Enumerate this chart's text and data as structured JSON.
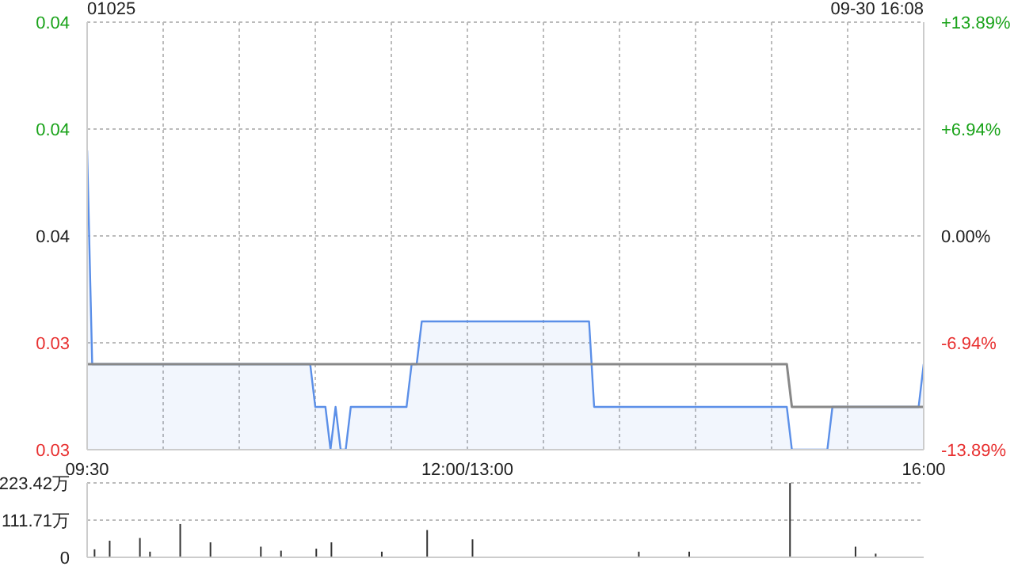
{
  "chart_data": [
    {
      "type": "area",
      "title": "01025",
      "annotations": [
        "09-30 16:08"
      ],
      "categories": [
        "09:30",
        null,
        null,
        null,
        null,
        null,
        null,
        null,
        null,
        null,
        null,
        null,
        null,
        null,
        null,
        null,
        null,
        null,
        null,
        null,
        null,
        null,
        null,
        null,
        null,
        null,
        null,
        null,
        null,
        null,
        null,
        null,
        null,
        null,
        null,
        null,
        null,
        null,
        null,
        null,
        null,
        null,
        null,
        null,
        null,
        null,
        null,
        null,
        null,
        null,
        null,
        null,
        null,
        null,
        null,
        null,
        null,
        null,
        null,
        null,
        null,
        null,
        null,
        null,
        null,
        null,
        null,
        null,
        null,
        null,
        null,
        null,
        null,
        null,
        null,
        "12:00/13:00",
        null,
        null,
        null,
        null,
        null,
        null,
        null,
        null,
        null,
        null,
        null,
        null,
        null,
        null,
        null,
        null,
        null,
        null,
        null,
        null,
        null,
        null,
        null,
        null,
        null,
        null,
        null,
        null,
        null,
        null,
        null,
        null,
        null,
        null,
        null,
        null,
        null,
        null,
        null,
        null,
        null,
        null,
        null,
        null,
        null,
        null,
        null,
        null,
        null,
        null,
        null,
        null,
        null,
        null,
        null,
        null,
        null,
        null,
        null,
        null,
        null,
        null,
        null,
        null,
        null,
        null,
        null,
        null,
        null,
        null,
        null,
        null,
        null,
        null,
        null,
        null,
        null,
        null,
        null,
        null,
        null,
        null,
        null,
        null,
        null,
        null,
        null,
        null,
        null,
        "16:00"
      ],
      "ylim": [
        0.031,
        0.041
      ],
      "yticks": [
        {
          "value": 0.031,
          "label": "0.03"
        },
        {
          "value": 0.0335,
          "label": "0.03"
        },
        {
          "value": 0.036,
          "label": "0.04"
        },
        {
          "value": 0.0385,
          "label": "0.04"
        },
        {
          "value": 0.041,
          "label": "0.04"
        }
      ],
      "y2lim": [
        -13.89,
        13.89
      ],
      "y2ticks": [
        {
          "value": -13.89,
          "label": "-13.89%"
        },
        {
          "value": -6.94,
          "label": "-6.94%"
        },
        {
          "value": 0,
          "label": "0.00%"
        },
        {
          "value": 6.94,
          "label": "+6.94%"
        },
        {
          "value": 13.89,
          "label": "+13.89%"
        }
      ],
      "grid": true,
      "series": [
        {
          "type": "area",
          "color": "#5b8fe8",
          "values": [
            0.038,
            0.033,
            0.033,
            0.033,
            0.033,
            0.033,
            0.033,
            0.033,
            0.033,
            0.033,
            0.033,
            0.033,
            0.033,
            0.033,
            0.033,
            0.033,
            0.033,
            0.033,
            0.033,
            0.033,
            0.033,
            0.033,
            0.033,
            0.033,
            0.033,
            0.033,
            0.033,
            0.033,
            0.033,
            0.033,
            0.033,
            0.033,
            0.033,
            0.033,
            0.033,
            0.033,
            0.033,
            0.033,
            0.033,
            0.033,
            0.033,
            0.033,
            0.033,
            0.033,
            0.033,
            0.032,
            0.032,
            0.032,
            0.031,
            0.032,
            0.031,
            0.031,
            0.032,
            0.032,
            0.032,
            0.032,
            0.032,
            0.032,
            0.032,
            0.032,
            0.032,
            0.032,
            0.032,
            0.032,
            0.033,
            0.033,
            0.034,
            0.034,
            0.034,
            0.034,
            0.034,
            0.034,
            0.034,
            0.034,
            0.034,
            0.034,
            0.034,
            0.034,
            0.034,
            0.034,
            0.034,
            0.034,
            0.034,
            0.034,
            0.034,
            0.034,
            0.034,
            0.034,
            0.034,
            0.034,
            0.034,
            0.034,
            0.034,
            0.034,
            0.034,
            0.034,
            0.034,
            0.034,
            0.034,
            0.034,
            0.032,
            0.032,
            0.032,
            0.032,
            0.032,
            0.032,
            0.032,
            0.032,
            0.032,
            0.032,
            0.032,
            0.032,
            0.032,
            0.032,
            0.032,
            0.032,
            0.032,
            0.032,
            0.032,
            0.032,
            0.032,
            0.032,
            0.032,
            0.032,
            0.032,
            0.032,
            0.032,
            0.032,
            0.032,
            0.032,
            0.032,
            0.032,
            0.032,
            0.032,
            0.032,
            0.032,
            0.032,
            0.032,
            0.032,
            0.031,
            0.031,
            0.031,
            0.031,
            0.031,
            0.031,
            0.031,
            0.031,
            0.032,
            0.032,
            0.032,
            0.032,
            0.032,
            0.032,
            0.032,
            0.032,
            0.032,
            0.032,
            0.032,
            0.032,
            0.032,
            0.032,
            0.032,
            0.032,
            0.032,
            0.032,
            0.033
          ]
        },
        {
          "type": "line",
          "color": "#888888",
          "values": [
            0.033,
            0.033,
            0.033,
            0.033,
            0.033,
            0.033,
            0.033,
            0.033,
            0.033,
            0.033,
            0.033,
            0.033,
            0.033,
            0.033,
            0.033,
            0.033,
            0.033,
            0.033,
            0.033,
            0.033,
            0.033,
            0.033,
            0.033,
            0.033,
            0.033,
            0.033,
            0.033,
            0.033,
            0.033,
            0.033,
            0.033,
            0.033,
            0.033,
            0.033,
            0.033,
            0.033,
            0.033,
            0.033,
            0.033,
            0.033,
            0.033,
            0.033,
            0.033,
            0.033,
            0.033,
            0.033,
            0.033,
            0.033,
            0.033,
            0.033,
            0.033,
            0.033,
            0.033,
            0.033,
            0.033,
            0.033,
            0.033,
            0.033,
            0.033,
            0.033,
            0.033,
            0.033,
            0.033,
            0.033,
            0.033,
            0.033,
            0.033,
            0.033,
            0.033,
            0.033,
            0.033,
            0.033,
            0.033,
            0.033,
            0.033,
            0.033,
            0.033,
            0.033,
            0.033,
            0.033,
            0.033,
            0.033,
            0.033,
            0.033,
            0.033,
            0.033,
            0.033,
            0.033,
            0.033,
            0.033,
            0.033,
            0.033,
            0.033,
            0.033,
            0.033,
            0.033,
            0.033,
            0.033,
            0.033,
            0.033,
            0.033,
            0.033,
            0.033,
            0.033,
            0.033,
            0.033,
            0.033,
            0.033,
            0.033,
            0.033,
            0.033,
            0.033,
            0.033,
            0.033,
            0.033,
            0.033,
            0.033,
            0.033,
            0.033,
            0.033,
            0.033,
            0.033,
            0.033,
            0.033,
            0.033,
            0.033,
            0.033,
            0.033,
            0.033,
            0.033,
            0.033,
            0.033,
            0.033,
            0.033,
            0.033,
            0.033,
            0.033,
            0.033,
            0.033,
            0.032,
            0.032,
            0.032,
            0.032,
            0.032,
            0.032,
            0.032,
            0.032,
            0.032,
            0.032,
            0.032,
            0.032,
            0.032,
            0.032,
            0.032,
            0.032,
            0.032,
            0.032,
            0.032,
            0.032,
            0.032,
            0.032,
            0.032,
            0.032,
            0.032,
            0.032,
            0.032
          ]
        }
      ]
    },
    {
      "type": "bar",
      "tick_labels": "y",
      "grid": "y",
      "color": "#333333",
      "categories": [
        null,
        null,
        null,
        null,
        null,
        null,
        null,
        null,
        null,
        null,
        null,
        null,
        null,
        null,
        null,
        null,
        null,
        null,
        null,
        null,
        null,
        null,
        null,
        null,
        null,
        null,
        null,
        null,
        null,
        null,
        null,
        null,
        null,
        null,
        null,
        null,
        null,
        null,
        null,
        null,
        null,
        null,
        null,
        null,
        null,
        null,
        null,
        null,
        null,
        null,
        null,
        null,
        null,
        null,
        null,
        null,
        null,
        null,
        null,
        null,
        null,
        null,
        null,
        null,
        null,
        null,
        null,
        null,
        null,
        null,
        null,
        null,
        null,
        null,
        null,
        null,
        null,
        null,
        null,
        null,
        null,
        null,
        null,
        null,
        null,
        null,
        null,
        null,
        null,
        null,
        null,
        null,
        null,
        null,
        null,
        null,
        null,
        null,
        null,
        null,
        null,
        null,
        null,
        null,
        null,
        null,
        null,
        null,
        null,
        null,
        null,
        null,
        null,
        null,
        null,
        null,
        null,
        null,
        null,
        null,
        null,
        null,
        null,
        null,
        null,
        null,
        null,
        null,
        null,
        null,
        null,
        null,
        null,
        null,
        null,
        null,
        null,
        null,
        null,
        null,
        null,
        null,
        null,
        null,
        null,
        null,
        null,
        null,
        null,
        null,
        null,
        null,
        null,
        null,
        null,
        null,
        null,
        null,
        null,
        null,
        null,
        null,
        null,
        null,
        null,
        null
      ],
      "values": [
        null,
        24,
        null,
        null,
        50,
        null,
        null,
        null,
        null,
        null,
        58,
        null,
        17,
        null,
        null,
        null,
        null,
        null,
        100,
        null,
        null,
        null,
        null,
        null,
        45,
        null,
        null,
        null,
        null,
        null,
        null,
        null,
        null,
        null,
        32,
        null,
        null,
        null,
        20,
        null,
        null,
        null,
        null,
        null,
        null,
        26,
        null,
        null,
        45,
        null,
        null,
        null,
        null,
        null,
        null,
        null,
        null,
        null,
        17,
        null,
        null,
        null,
        null,
        null,
        null,
        null,
        null,
        82,
        null,
        null,
        null,
        null,
        null,
        null,
        null,
        null,
        54,
        null,
        null,
        null,
        null,
        null,
        null,
        null,
        null,
        null,
        null,
        null,
        null,
        null,
        null,
        null,
        null,
        null,
        null,
        null,
        null,
        null,
        null,
        null,
        null,
        null,
        null,
        null,
        null,
        null,
        null,
        null,
        null,
        17,
        null,
        null,
        null,
        null,
        null,
        null,
        null,
        null,
        null,
        17,
        null,
        null,
        null,
        null,
        null,
        null,
        null,
        null,
        null,
        null,
        null,
        null,
        null,
        null,
        null,
        null,
        null,
        null,
        null,
        223,
        null,
        null,
        null,
        null,
        null,
        null,
        null,
        null,
        null,
        null,
        null,
        null,
        32,
        null,
        null,
        null,
        11,
        null,
        null,
        null,
        null,
        null,
        null,
        null,
        null,
        null
      ],
      "ylim": [
        0,
        223.42
      ],
      "yticks": [
        0,
        {
          "value": 111.71,
          "label": "111.71万"
        },
        {
          "value": 223.42,
          "label": "223.42万"
        }
      ]
    }
  ]
}
